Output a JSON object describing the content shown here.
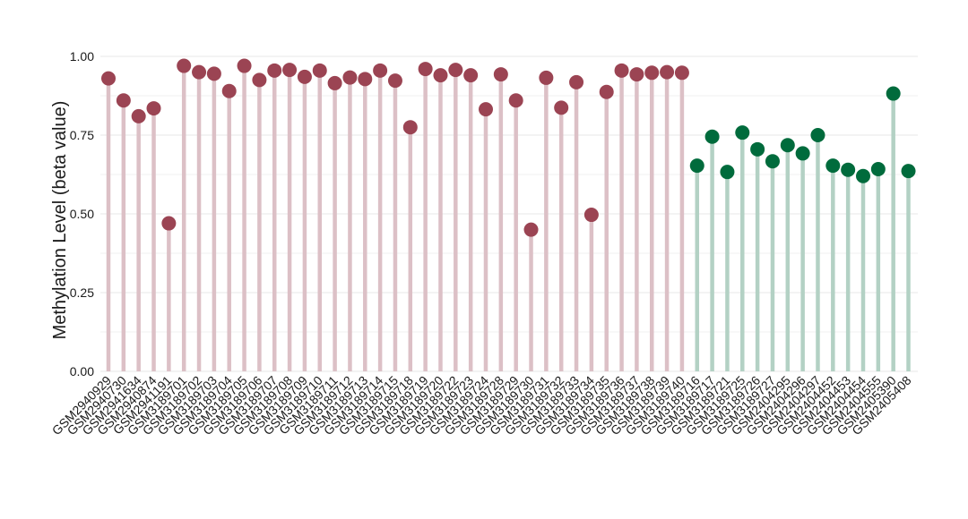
{
  "chart_data": {
    "type": "lollipop",
    "ylabel": "Methylation Level (beta value)",
    "xlabel": "",
    "title": "",
    "ylim": [
      0,
      1
    ],
    "y_ticks": [
      "0.00",
      "0.25",
      "0.50",
      "0.75",
      "1.00"
    ],
    "y_tick_values": [
      0,
      0.25,
      0.5,
      0.75,
      1.0
    ],
    "grid": "horizontal",
    "colors": {
      "group_a_point": "#9b4453",
      "group_a_stem": "#dcc0c6",
      "group_b_point": "#006b3c",
      "group_b_stem": "#b3d1c4",
      "grid": "#ececec"
    },
    "categories": [
      "GSM2940929",
      "GSM2940730",
      "GSM2941634",
      "GSM2940874",
      "GSM2941191",
      "GSM3189701",
      "GSM3189702",
      "GSM3189703",
      "GSM3189704",
      "GSM3189705",
      "GSM3189706",
      "GSM3189707",
      "GSM3189708",
      "GSM3189709",
      "GSM3189710",
      "GSM3189711",
      "GSM3189712",
      "GSM3189713",
      "GSM3189714",
      "GSM3189715",
      "GSM3189718",
      "GSM3189719",
      "GSM3189720",
      "GSM3189722",
      "GSM3189723",
      "GSM3189724",
      "GSM3189728",
      "GSM3189729",
      "GSM3189730",
      "GSM3189731",
      "GSM3189732",
      "GSM3189733",
      "GSM3189734",
      "GSM3189735",
      "GSM3189736",
      "GSM3189737",
      "GSM3189738",
      "GSM3189739",
      "GSM3189740",
      "GSM3189716",
      "GSM3189717",
      "GSM3189721",
      "GSM3189725",
      "GSM3189726",
      "GSM3189727",
      "GSM2404295",
      "GSM2404296",
      "GSM2404297",
      "GSM2404452",
      "GSM2404453",
      "GSM2404454",
      "GSM2404555",
      "GSM2405390",
      "GSM2405408"
    ],
    "values": [
      0.93,
      0.86,
      0.81,
      0.835,
      0.47,
      0.97,
      0.95,
      0.945,
      0.89,
      0.97,
      0.925,
      0.955,
      0.957,
      0.935,
      0.955,
      0.915,
      0.933,
      0.928,
      0.955,
      0.923,
      0.775,
      0.96,
      0.94,
      0.957,
      0.94,
      0.832,
      0.943,
      0.86,
      0.45,
      0.932,
      0.837,
      0.918,
      0.497,
      0.887,
      0.955,
      0.943,
      0.948,
      0.95,
      0.948,
      0.653,
      0.745,
      0.633,
      0.758,
      0.705,
      0.667,
      0.718,
      0.692,
      0.75,
      0.653,
      0.64,
      0.62,
      0.642,
      0.882,
      0.636
    ],
    "groups": [
      "a",
      "a",
      "a",
      "a",
      "a",
      "a",
      "a",
      "a",
      "a",
      "a",
      "a",
      "a",
      "a",
      "a",
      "a",
      "a",
      "a",
      "a",
      "a",
      "a",
      "a",
      "a",
      "a",
      "a",
      "a",
      "a",
      "a",
      "a",
      "a",
      "a",
      "a",
      "a",
      "a",
      "a",
      "a",
      "a",
      "a",
      "a",
      "a",
      "b",
      "b",
      "b",
      "b",
      "b",
      "b",
      "b",
      "b",
      "b",
      "b",
      "b",
      "b",
      "b",
      "b",
      "b"
    ]
  }
}
